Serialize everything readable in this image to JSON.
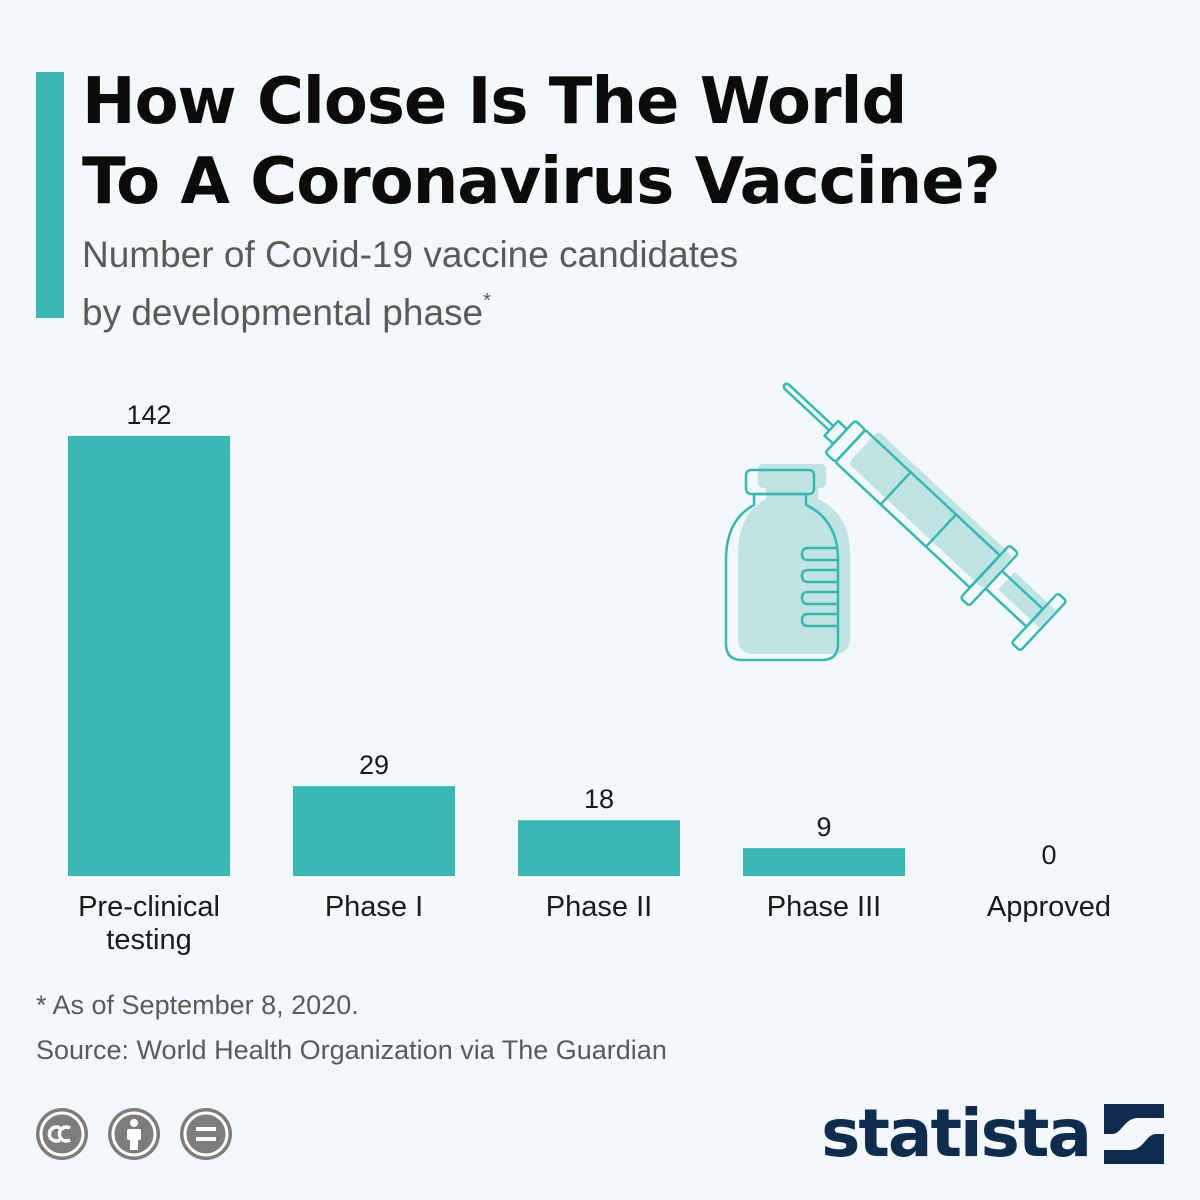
{
  "header": {
    "title_line1": "How Close Is The World",
    "title_line2": "To A Coronavirus Vaccine?",
    "subtitle_line1": "Number of Covid-19 vaccine candidates",
    "subtitle_line2": "by developmental phase",
    "subtitle_marker": "*"
  },
  "colors": {
    "accent": "#3ab7b3",
    "bar": "#3ab7b3",
    "illustration_fill": "#bfe4e3",
    "illustration_stroke": "#3ab7b3",
    "brand": "#0f2c4e"
  },
  "chart_data": {
    "type": "bar",
    "categories": [
      "Pre-clinical testing",
      "Phase I",
      "Phase II",
      "Phase III",
      "Approved"
    ],
    "category_lines": [
      [
        "Pre-clinical",
        "testing"
      ],
      [
        "Phase I"
      ],
      [
        "Phase II"
      ],
      [
        "Phase III"
      ],
      [
        "Approved"
      ]
    ],
    "values": [
      142,
      29,
      18,
      9,
      0
    ],
    "value_labels": [
      "142",
      "29",
      "18",
      "9",
      "0"
    ],
    "ylim": [
      0,
      142
    ],
    "grid": false,
    "legend": "none"
  },
  "footer": {
    "note": "* As of September 8, 2020.",
    "source": "Source: World Health Organization via The Guardian",
    "license_icons": [
      "creative-commons-icon",
      "attribution-person-icon",
      "no-derivatives-equals-icon"
    ],
    "brand": "statista"
  }
}
